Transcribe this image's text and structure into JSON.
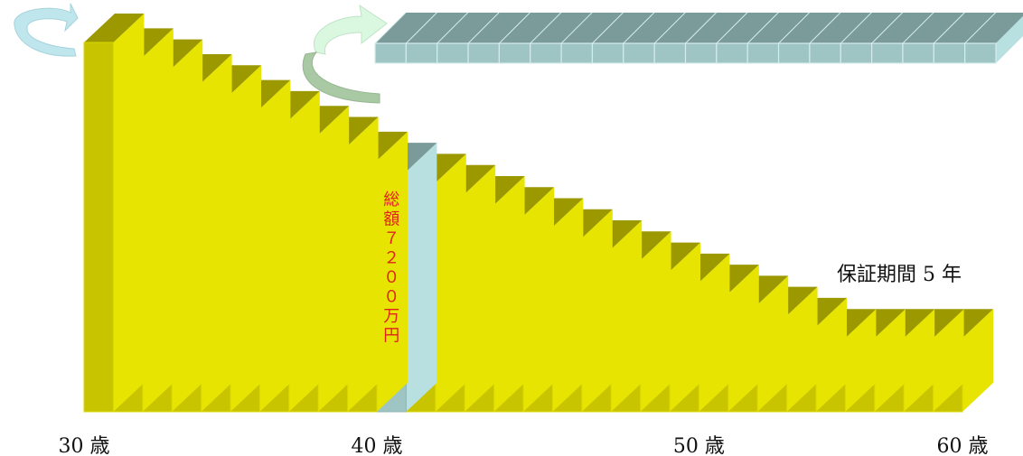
{
  "colors": {
    "bar_front": "#c8c400",
    "bar_top": "#9b9800",
    "bar_side": "#e6e400",
    "bar_edge": "#dad800",
    "highlight_front": "#9ec4c4",
    "highlight_top": "#7b9a9a",
    "highlight_side": "#b9e0e0",
    "strip_front": "#9ec4c4",
    "strip_top": "#7b9a9a",
    "arrow_left": "#bfe6ec",
    "arrow_right_light": "#d9f8df",
    "arrow_right_dark": "#a8c9a3",
    "text_red": "#e0231c"
  },
  "chart_data": {
    "type": "bar",
    "yearly_amounts": [
      1.0,
      0.96,
      0.93,
      0.89,
      0.86,
      0.82,
      0.79,
      0.75,
      0.72,
      0.68,
      0.65,
      0.62,
      0.59,
      0.56,
      0.53,
      0.5,
      0.47,
      0.44,
      0.41,
      0.38,
      0.35,
      0.32,
      0.29,
      0.26,
      0.23,
      0.2,
      0.2,
      0.2,
      0.2,
      0.2
    ],
    "highlight_year_index": 10,
    "age_labels": [
      {
        "text": "30 歳",
        "year_index": 0
      },
      {
        "text": "40 歳",
        "year_index": 10
      },
      {
        "text": "50 歳",
        "year_index": 21
      },
      {
        "text": "60 歳",
        "year_index": 30
      }
    ]
  },
  "highlight_text": "総額７２００万円",
  "guarantee_label": "保証期間 5 年",
  "strip_segment_count": 20
}
